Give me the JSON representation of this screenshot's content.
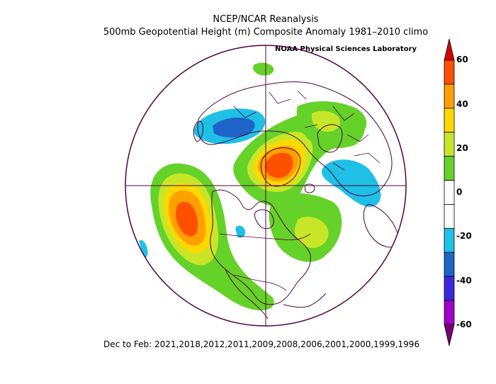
{
  "titles": {
    "line1": "NCEP/NCAR Reanalysis",
    "line2": "500mb Geopotential Height (m) Composite Anomaly 1981–2010 climo",
    "credit": "NOAA Physical Sciences Laboratory"
  },
  "footer": "Dec to Feb: 2021,2018,2012,2011,2009,2008,2006,2001,2000,1999,1996",
  "colorbar": {
    "labels": [
      "60",
      "40",
      "20",
      "0",
      "-20",
      "-40",
      "-60"
    ],
    "colors": [
      "#d70000",
      "#ff5000",
      "#ffa000",
      "#ffd800",
      "#c8e628",
      "#64d228",
      "#ffffff",
      "#ffffff",
      "#1ec0e6",
      "#1e64c8",
      "#3c28dc",
      "#a000c8",
      "#780078"
    ]
  },
  "map": {
    "projection": "north-polar-stereographic",
    "colors": {
      "green": "#64d228",
      "yellowgreen": "#c8e628",
      "yellow": "#ffd800",
      "orange": "#ffa000",
      "darkorange": "#ff5000",
      "cyan": "#1ec0e6",
      "blue": "#1e64c8",
      "outline": "#50003c"
    }
  }
}
